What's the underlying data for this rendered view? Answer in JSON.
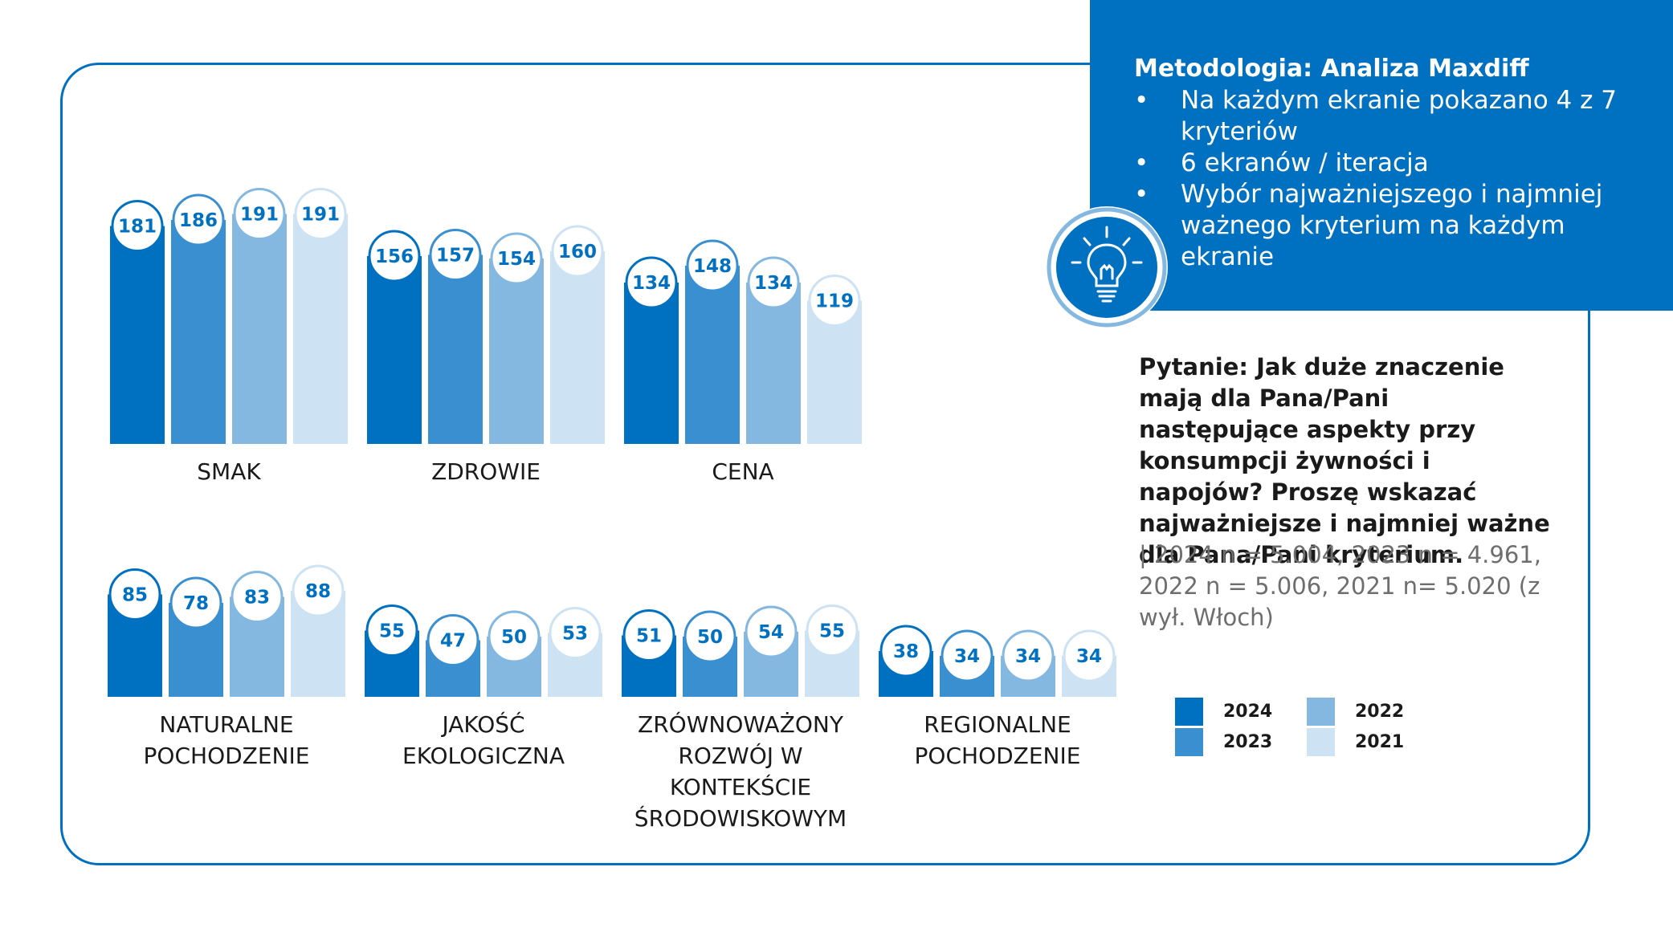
{
  "methodology": {
    "title": "Metodologia: Analiza Maxdiff",
    "items": [
      "Na każdym ekranie pokazano 4 z 7 kryteriów",
      "6 ekranów / iteracja",
      "Wybór najważniejszego i najmniej ważnego kryterium na każdym ekranie"
    ],
    "icon": "lightbulb-icon"
  },
  "question": "Pytanie: Jak duże znaczenie mają dla Pana/Pani następujące aspekty przy konsumpcji żywności i napojów? Proszę wskazać najważniejsze i najmniej ważne dla Pana/Pani kryterium.",
  "sample": "| 2024 n = 5.004, 2023 n = 4.961, 2022 n = 5.006, 2021 n= 5.020 (z wył. Włoch)",
  "colors": {
    "primary": "#0070c0",
    "series": [
      "#0070c0",
      "#3a8fd0",
      "#84b8e0",
      "#cde2f2"
    ]
  },
  "chart_data": {
    "type": "bar",
    "legend_position": "bottom-right",
    "series_names": [
      "2024",
      "2023",
      "2022",
      "2021"
    ],
    "categories": [
      {
        "label": [
          "SMAK"
        ],
        "values": [
          181,
          186,
          191,
          191
        ]
      },
      {
        "label": [
          "ZDROWIE"
        ],
        "values": [
          156,
          157,
          154,
          160
        ]
      },
      {
        "label": [
          "CENA"
        ],
        "values": [
          134,
          148,
          134,
          119
        ]
      },
      {
        "label": [
          "NATURALNE",
          "POCHODZENIE"
        ],
        "values": [
          85,
          78,
          83,
          88
        ]
      },
      {
        "label": [
          "JAKOŚĆ",
          "EKOLOGICZNA"
        ],
        "values": [
          55,
          47,
          50,
          53
        ]
      },
      {
        "label": [
          "ZRÓWNOWAŻONY",
          "ROZWÓJ W",
          "KONTEKŚCIE",
          "ŚRODOWISKOWYM"
        ],
        "values": [
          51,
          50,
          54,
          55
        ]
      },
      {
        "label": [
          "REGIONALNE",
          "POCHODZENIE"
        ],
        "values": [
          38,
          34,
          34,
          34
        ]
      }
    ]
  }
}
